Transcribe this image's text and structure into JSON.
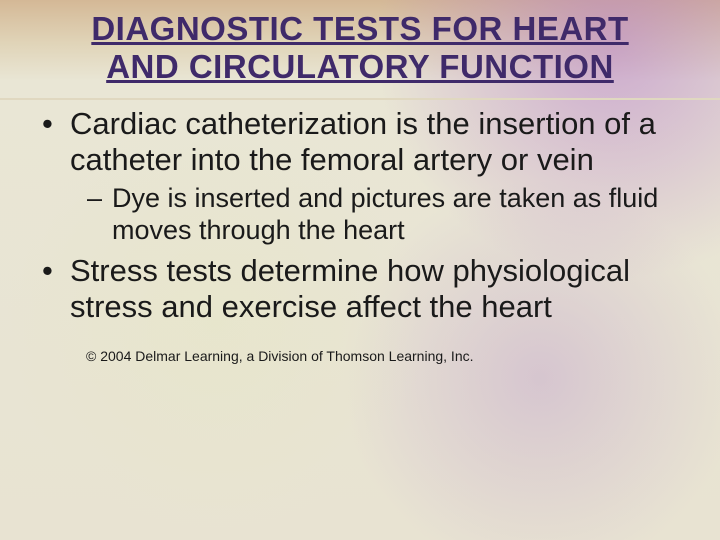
{
  "title": {
    "line1": "DIAGNOSTIC TESTS FOR HEART",
    "line2": "AND CIRCULATORY FUNCTION",
    "color": "#3f2a6a",
    "fontsize": 33
  },
  "bullets": [
    {
      "level": 1,
      "marker": "•",
      "text": "Cardiac catheterization is the insertion of a catheter into the femoral artery or vein"
    },
    {
      "level": 2,
      "marker": "–",
      "text": "Dye is inserted and pictures are taken as fluid moves through the heart"
    },
    {
      "level": 1,
      "marker": "•",
      "text": "Stress tests determine how physiological stress and exercise affect the heart"
    }
  ],
  "body_style": {
    "color": "#1a1a1a",
    "fontsize_l1": 31,
    "fontsize_l2": 27
  },
  "copyright": {
    "text": "© 2004 Delmar Learning, a Division of Thomson Learning, Inc.",
    "color": "#1a1a1a",
    "fontsize": 14
  },
  "background": {
    "top_gradient": "#d4b896",
    "main": "#e8e3d2",
    "accent_purple": "#b494c4",
    "accent_cream": "#e8e4c8"
  }
}
